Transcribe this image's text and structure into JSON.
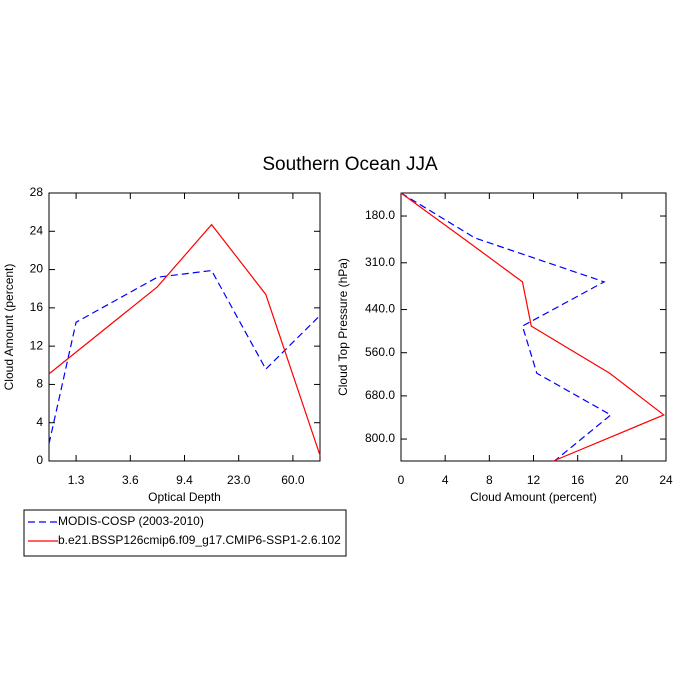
{
  "chart_data": [
    {
      "type": "line",
      "title": "Southern Ocean JJA",
      "xlabel": "Optical Depth",
      "ylabel": "Cloud Amount (percent)",
      "xlim": [
        0,
        5
      ],
      "xticks": [
        {
          "value": 0.5,
          "label": "1.3"
        },
        {
          "value": 1.5,
          "label": "3.6"
        },
        {
          "value": 2.5,
          "label": "9.4"
        },
        {
          "value": 3.5,
          "label": "23.0"
        },
        {
          "value": 4.5,
          "label": "60.0"
        }
      ],
      "ylim": [
        0,
        28
      ],
      "yticks": [
        0,
        4,
        8,
        12,
        16,
        20,
        24,
        28
      ],
      "series": [
        {
          "name": "MODIS-COSP (2003-2010)",
          "color": "#0000ff",
          "dashed": true,
          "x": [
            0,
            0.5,
            2,
            3,
            4,
            5
          ],
          "values": [
            1.8,
            14.5,
            19.2,
            19.9,
            9.6,
            15.2
          ]
        },
        {
          "name": "b.e21.BSSP126cmip6.f09_g17.CMIP6-SSP1-2.6.102",
          "color": "#ff0000",
          "dashed": false,
          "x": [
            0,
            2,
            3,
            4,
            5
          ],
          "values": [
            9.1,
            18.2,
            24.7,
            17.4,
            0.6
          ]
        }
      ]
    },
    {
      "type": "line",
      "orientation": "horizontal",
      "xlabel": "Cloud Amount (percent)",
      "ylabel": "Cloud Top Pressure (hPa)",
      "xlim": [
        0,
        24
      ],
      "xticks": [
        0,
        4,
        8,
        12,
        16,
        20,
        24
      ],
      "ylim": [
        861,
        116
      ],
      "yticks": [
        {
          "value": 180,
          "label": "180.0"
        },
        {
          "value": 310,
          "label": "310.0"
        },
        {
          "value": 440,
          "label": "440.0"
        },
        {
          "value": 560,
          "label": "560.0"
        },
        {
          "value": 680,
          "label": "680.0"
        },
        {
          "value": 800,
          "label": "800.0"
        }
      ],
      "series": [
        {
          "color": "#0000ff",
          "dashed": true,
          "y": [
            116,
            241,
            363,
            486,
            617,
            733,
            861
          ],
          "values": [
            0,
            6.7,
            18.4,
            11.0,
            12.3,
            19.0,
            13.9
          ]
        },
        {
          "color": "#ff0000",
          "dashed": false,
          "y": [
            116,
            241,
            363,
            486,
            617,
            733,
            861
          ],
          "values": [
            0,
            5.6,
            11.0,
            11.8,
            18.9,
            23.8,
            13.8
          ]
        }
      ]
    }
  ]
}
